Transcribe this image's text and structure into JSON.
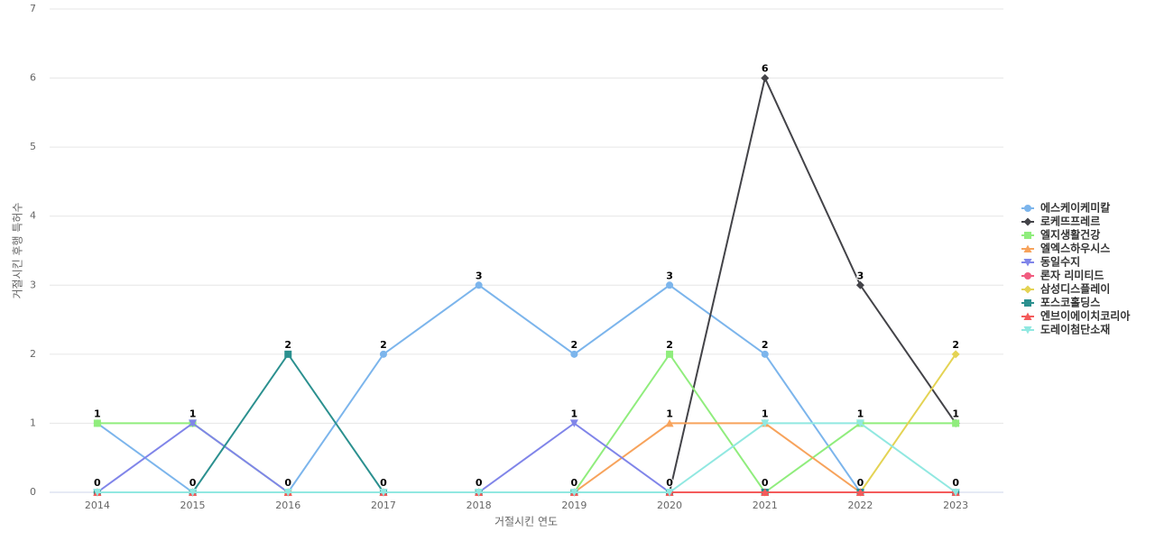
{
  "chart_data": {
    "type": "line",
    "x_label": "거절시킨 연도",
    "y_label": "거절시킨 후행 특허수",
    "categories": [
      "2014",
      "2015",
      "2016",
      "2017",
      "2018",
      "2019",
      "2020",
      "2021",
      "2022",
      "2023"
    ],
    "ylim": [
      0,
      7
    ],
    "yticks": [
      0,
      1,
      2,
      3,
      4,
      5,
      6,
      7
    ],
    "grid": true,
    "legend": "right",
    "series": [
      {
        "name": "에스케이케미칼",
        "color": "#7cb5ec",
        "values": [
          1,
          0,
          0,
          2,
          3,
          2,
          3,
          2,
          0,
          0
        ]
      },
      {
        "name": "로케뜨프레르",
        "color": "#434348",
        "values": [
          0,
          0,
          0,
          0,
          0,
          0,
          0,
          6,
          3,
          1
        ]
      },
      {
        "name": "엘지생활건강",
        "color": "#90ed7d",
        "values": [
          1,
          1,
          0,
          0,
          0,
          0,
          2,
          0,
          1,
          1
        ]
      },
      {
        "name": "엘엑스하우시스",
        "color": "#f7a35c",
        "values": [
          0,
          0,
          0,
          0,
          0,
          0,
          1,
          1,
          0,
          0
        ]
      },
      {
        "name": "동일수지",
        "color": "#8085e9",
        "values": [
          0,
          1,
          0,
          0,
          0,
          1,
          0,
          0,
          0,
          0
        ]
      },
      {
        "name": "론자 리미티드",
        "color": "#f15c80",
        "values": [
          0,
          0,
          0,
          0,
          0,
          0,
          0,
          0,
          0,
          0
        ]
      },
      {
        "name": "삼성디스플레이",
        "color": "#e4d354",
        "values": [
          0,
          0,
          0,
          0,
          0,
          0,
          0,
          0,
          0,
          2
        ]
      },
      {
        "name": "포스코홀딩스",
        "color": "#2b908f",
        "values": [
          0,
          0,
          2,
          0,
          0,
          0,
          0,
          0,
          0,
          0
        ]
      },
      {
        "name": "엔브이에이치코리아",
        "color": "#f45b5b",
        "values": [
          0,
          0,
          0,
          0,
          0,
          0,
          0,
          0,
          0,
          0
        ]
      },
      {
        "name": "도레이첨단소재",
        "color": "#91e8e1",
        "values": [
          0,
          0,
          0,
          0,
          0,
          0,
          0,
          1,
          1,
          0
        ]
      }
    ]
  }
}
